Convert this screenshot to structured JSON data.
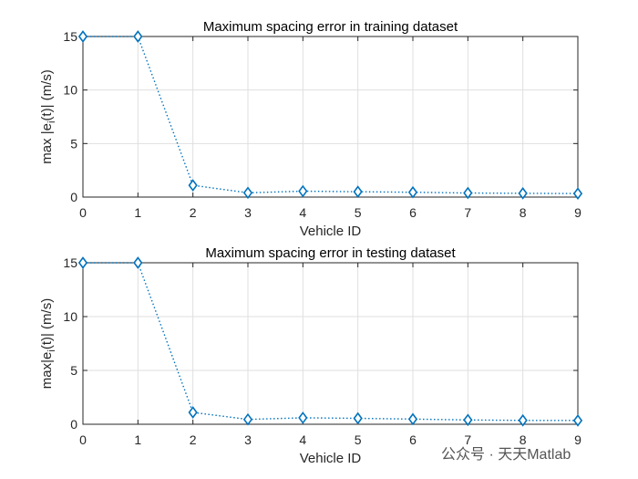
{
  "watermark": "公众号 · 天天Matlab",
  "chart_data": [
    {
      "type": "line",
      "title": "Maximum spacing error in training dataset",
      "xlabel": "Vehicle ID",
      "ylabel": "max |e_i(t)| (m/s)",
      "ylabel_parts": [
        "max |e",
        "i",
        "(t)| (m/s)"
      ],
      "xlim": [
        0,
        9
      ],
      "ylim": [
        0,
        15
      ],
      "xticks": [
        0,
        1,
        2,
        3,
        4,
        5,
        6,
        7,
        8,
        9
      ],
      "yticks": [
        0,
        5,
        10,
        15
      ],
      "grid": true,
      "series": [
        {
          "x": [
            0,
            1,
            2,
            3,
            4,
            5,
            6,
            7,
            8,
            9
          ],
          "values": [
            15,
            15,
            1.1,
            0.4,
            0.55,
            0.5,
            0.45,
            0.38,
            0.35,
            0.33
          ],
          "color": "#0072bd",
          "marker": "diamond",
          "linestyle": "dotted"
        }
      ]
    },
    {
      "type": "line",
      "title": "Maximum spacing error in testing dataset",
      "xlabel": "Vehicle ID",
      "ylabel": "max|e_i(t)| (m/s)",
      "ylabel_parts": [
        "max|e",
        "i",
        "(t)| (m/s)"
      ],
      "xlim": [
        0,
        9
      ],
      "ylim": [
        0,
        15
      ],
      "xticks": [
        0,
        1,
        2,
        3,
        4,
        5,
        6,
        7,
        8,
        9
      ],
      "yticks": [
        0,
        5,
        10,
        15
      ],
      "grid": true,
      "series": [
        {
          "x": [
            0,
            1,
            2,
            3,
            4,
            5,
            6,
            7,
            8,
            9
          ],
          "values": [
            15,
            15,
            1.1,
            0.45,
            0.6,
            0.55,
            0.48,
            0.4,
            0.36,
            0.35
          ],
          "color": "#0072bd",
          "marker": "diamond",
          "linestyle": "dotted"
        }
      ]
    }
  ]
}
